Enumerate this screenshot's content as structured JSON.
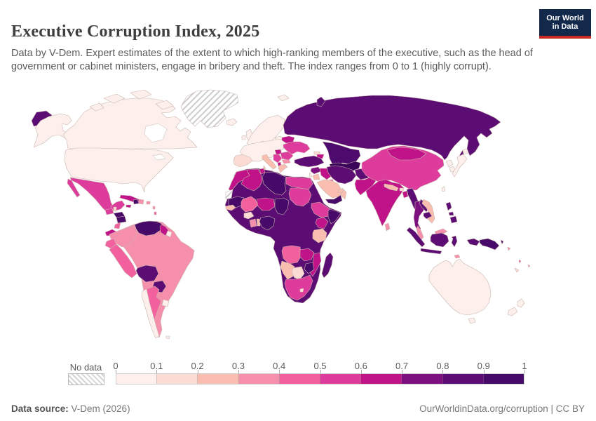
{
  "header": {
    "title": "Executive Corruption Index, 2025",
    "subtitle": "Data by V-Dem. Expert estimates of the extent to which high-ranking members of the executive, such as the head of government or cabinet ministers, engage in bribery and theft. The index ranges from 0 to 1 (highly corrupt).",
    "logo": {
      "line1": "Our World",
      "line2": "in Data",
      "bg": "#12294B",
      "accent": "#C62A22"
    }
  },
  "legend": {
    "no_data_label": "No data",
    "ticks": [
      "0",
      "0.1",
      "0.2",
      "0.3",
      "0.4",
      "0.5",
      "0.6",
      "0.7",
      "0.8",
      "0.9",
      "1"
    ],
    "colors": [
      "#FDF0EC",
      "#FBDCD5",
      "#F9BEB0",
      "#F68FAB",
      "#F2609E",
      "#DE3C9C",
      "#C01389",
      "#7C107F",
      "#5C0D73",
      "#470A68"
    ]
  },
  "map": {
    "ocean": "#FFFFFF",
    "border_color": "#C9B6AE",
    "extra": {
      "central_asia": "#3B0559",
      "kazakhstan": "#4D0C6D"
    }
  },
  "footer": {
    "source_label": "Data source:",
    "source_value": " V-Dem (2026)",
    "credit": "OurWorldinData.org/corruption | CC BY"
  },
  "chart_data": {
    "type": "choropleth",
    "title": "Executive Corruption Index, 2025",
    "value_range": [
      0,
      1
    ],
    "legend_buckets": [
      0,
      0.1,
      0.2,
      0.3,
      0.4,
      0.5,
      0.6,
      0.7,
      0.8,
      0.9,
      1
    ],
    "no_data": [
      "Greenland",
      "Western Sahara",
      "Svalbard"
    ],
    "countries": {
      "United States": 0.05,
      "Canada": 0.05,
      "Mexico": 0.55,
      "Guatemala": 0.55,
      "Belize": 0.15,
      "Honduras": 0.95,
      "Nicaragua": 0.95,
      "Costa Rica": 0.45,
      "Panama": 0.65,
      "Cuba": 0.65,
      "Haiti": 0.95,
      "Dominican Republic": 0.35,
      "Jamaica": 0.65,
      "Colombia": 0.35,
      "Venezuela": 0.95,
      "Guyana": 0.65,
      "Suriname": 0.05,
      "Ecuador": 0.45,
      "Peru": 0.45,
      "Brazil": 0.35,
      "Bolivia": 0.85,
      "Paraguay": 0.85,
      "Chile": 0.05,
      "Argentina": 0.45,
      "Uruguay": 0.05,
      "Iceland": 0.05,
      "United Kingdom": 0.05,
      "Ireland": 0.05,
      "Norway": 0.05,
      "Sweden": 0.05,
      "Finland": 0.05,
      "Denmark": 0.05,
      "France": 0.05,
      "Germany": 0.05,
      "Poland": 0.05,
      "Spain": 0.15,
      "Portugal": 0.15,
      "Italy": 0.25,
      "Greece": 0.25,
      "Hungary": 0.65,
      "Serbia": 0.55,
      "Albania": 0.65,
      "Bulgaria": 0.35,
      "Romania": 0.55,
      "Moldova": 0.65,
      "Ukraine": 0.55,
      "Belarus": 0.65,
      "Russia": 0.85,
      "Turkey": 0.75,
      "Georgia": 0.15,
      "Azerbaijan": 0.65,
      "Kazakhstan": 0.85,
      "Uzbekistan": 0.95,
      "Turkmenistan": 0.95,
      "Iran": 0.75,
      "Iraq": 0.65,
      "Syria": 0.75,
      "Jordan": 0.25,
      "Kuwait": 0.55,
      "Saudi Arabia": 0.25,
      "Yemen": 0.95,
      "Oman": 0.25,
      "United Arab Emirates": 0.25,
      "Afghanistan": 0.75,
      "Pakistan": 0.65,
      "India": 0.65,
      "Nepal": 0.25,
      "Bhutan": 0.15,
      "Bangladesh": 0.65,
      "Sri Lanka": 0.35,
      "Myanmar": 0.85,
      "Thailand": 0.75,
      "Laos": 0.85,
      "Cambodia": 0.85,
      "Vietnam": 0.25,
      "Malaysia": 0.35,
      "Indonesia": 0.85,
      "Philippines": 0.85,
      "China": 0.55,
      "Mongolia": 0.65,
      "North Korea": 0.05,
      "South Korea": 0.05,
      "Japan": 0.05,
      "Taiwan": 0.05,
      "Papua New Guinea": 0.85,
      "Australia": 0.05,
      "New Zealand": 0.05,
      "Morocco": 0.65,
      "Algeria": 0.65,
      "Tunisia": 0.65,
      "Libya": 0.95,
      "Egypt": 0.55,
      "Mauritania": 0.85,
      "Mali": 0.45,
      "Niger": 0.65,
      "Chad": 0.95,
      "Sudan": 0.55,
      "Senegal": 0.25,
      "Burkina Faso": 0.15,
      "Ghana": 0.35,
      "Nigeria": 0.95,
      "Cameroon": 0.9,
      "Ethiopia": 0.55,
      "Somalia": 0.85,
      "Kenya": 0.65,
      "Uganda": 0.85,
      "Tanzania": 0.25,
      "Democratic Republic of Congo": 0.85,
      "Angola": 0.45,
      "Zambia": 0.65,
      "Zimbabwe": 0.85,
      "Mozambique": 0.65,
      "Namibia": 0.25,
      "Botswana": 0.15,
      "South Africa": 0.55,
      "Madagascar": 0.85
    }
  }
}
